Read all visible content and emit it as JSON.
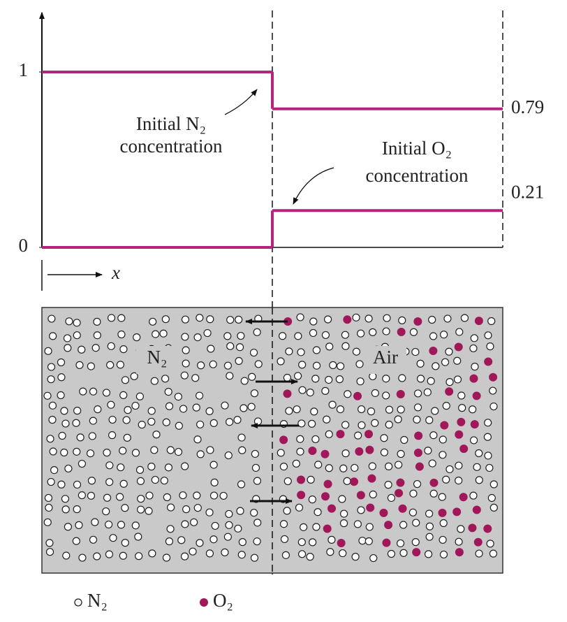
{
  "profile": {
    "yticks": [
      0,
      1
    ],
    "x_label": "x",
    "n2": {
      "left": 1,
      "right": 0.79,
      "label": [
        "Initial N₂",
        "concentration"
      ]
    },
    "o2": {
      "left": 0,
      "right": 0.21,
      "label": [
        "Initial O₂",
        "concentration"
      ]
    }
  },
  "box": {
    "left_label": "N₂",
    "right_label": "Air"
  },
  "legend": [
    {
      "label": "N₂"
    },
    {
      "label": "O₂"
    }
  ]
}
